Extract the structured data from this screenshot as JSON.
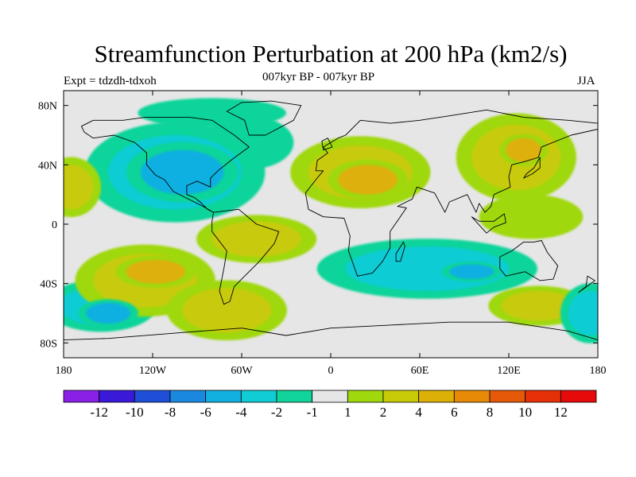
{
  "chart_data": {
    "type": "heatmap",
    "title": "Streamfunction Perturbation at 200 hPa (km2/s)",
    "subtitle": "007kyr BP - 007kyr BP",
    "left_label": "Expt = tdzdh-tdxoh",
    "right_label": "JJA",
    "x_axis": {
      "range": [
        -180,
        180
      ],
      "ticks": [
        -180,
        -120,
        -60,
        0,
        60,
        120,
        180
      ],
      "tick_labels": [
        "180",
        "120W",
        "60W",
        "0",
        "60E",
        "120E",
        "180"
      ]
    },
    "y_axis": {
      "range": [
        -90,
        90
      ],
      "ticks": [
        80,
        40,
        0,
        -40,
        -80
      ],
      "tick_labels": [
        "80N",
        "40N",
        "0",
        "40S",
        "80S"
      ]
    },
    "colorbar": {
      "labels": [
        "-12",
        "-10",
        "-8",
        "-6",
        "-4",
        "-2",
        "-1",
        "1",
        "2",
        "4",
        "6",
        "8",
        "10",
        "12"
      ],
      "colors": [
        "#8a1fe6",
        "#3b19d9",
        "#1e4fd6",
        "#1a88de",
        "#11b0e0",
        "#10ccd4",
        "#10d49a",
        "#e6e6e6",
        "#9fd80c",
        "#c8cb08",
        "#ddb008",
        "#e68a08",
        "#e45a08",
        "#e63008",
        "#e60a0a"
      ]
    },
    "fill_levels": {
      "neg1": "#10d49a",
      "neg2": "#10ccd4",
      "neg4": "#11b0e0",
      "pos1": "#9fd80c",
      "pos2": "#c8cb08",
      "pos4": "#ddb008"
    },
    "anomalies": [
      {
        "name": "central-pacific-south-negative",
        "lon": -155,
        "lat": -55,
        "rlon": 28,
        "rlat": 13,
        "level": -2
      },
      {
        "name": "south-pacific-negative-core",
        "lon": -150,
        "lat": -60,
        "rlon": 15,
        "rlat": 7,
        "level": -4
      },
      {
        "name": "south-pacific-positive",
        "lon": -125,
        "lat": -38,
        "rlon": 35,
        "rlat": 18,
        "level": 2
      },
      {
        "name": "south-pacific-positive-core",
        "lon": -118,
        "lat": -32,
        "rlon": 20,
        "rlat": 8,
        "level": 4
      },
      {
        "name": "north-america-negative",
        "lon": -105,
        "lat": 35,
        "rlon": 45,
        "rlat": 25,
        "level": -2
      },
      {
        "name": "north-america-negative-core",
        "lon": -100,
        "lat": 35,
        "rlon": 28,
        "rlat": 15,
        "level": -4
      },
      {
        "name": "north-atlantic-negative",
        "lon": -55,
        "lat": 55,
        "rlon": 30,
        "rlat": 18,
        "level": -1
      },
      {
        "name": "arctic-negative",
        "lon": -80,
        "lat": 75,
        "rlon": 50,
        "rlat": 10,
        "level": -1
      },
      {
        "name": "south-america-positive",
        "lon": -50,
        "lat": -10,
        "rlon": 30,
        "rlat": 12,
        "level": 2
      },
      {
        "name": "south-atlantic-positive",
        "lon": -70,
        "lat": -58,
        "rlon": 30,
        "rlat": 15,
        "level": 2
      },
      {
        "name": "north-africa-positive",
        "lon": 20,
        "lat": 35,
        "rlon": 35,
        "rlat": 18,
        "level": 2
      },
      {
        "name": "north-africa-positive-core",
        "lon": 25,
        "lat": 30,
        "rlon": 20,
        "rlat": 10,
        "level": 4
      },
      {
        "name": "indian-ocean-negative",
        "lon": 65,
        "lat": -30,
        "rlon": 55,
        "rlat": 15,
        "level": -2
      },
      {
        "name": "indian-ocean-negative-core",
        "lon": 95,
        "lat": -32,
        "rlon": 15,
        "rlat": 5,
        "level": -4
      },
      {
        "name": "east-asia-positive",
        "lon": 125,
        "lat": 45,
        "rlon": 30,
        "rlat": 22,
        "level": 2
      },
      {
        "name": "east-asia-positive-core",
        "lon": 130,
        "lat": 50,
        "rlon": 12,
        "rlat": 8,
        "level": 4
      },
      {
        "name": "west-pacific-positive",
        "lon": 135,
        "lat": 5,
        "rlon": 35,
        "rlat": 15,
        "level": 1
      },
      {
        "name": "australia-south-positive",
        "lon": 140,
        "lat": -55,
        "rlon": 25,
        "rlat": 10,
        "level": 2
      },
      {
        "name": "southern-ocean-negative",
        "lon": 175,
        "lat": -60,
        "rlon": 15,
        "rlat": 15,
        "level": -2
      },
      {
        "name": "pacific-east-positive",
        "lon": -175,
        "lat": 25,
        "rlon": 15,
        "rlat": 15,
        "level": 2
      }
    ]
  }
}
